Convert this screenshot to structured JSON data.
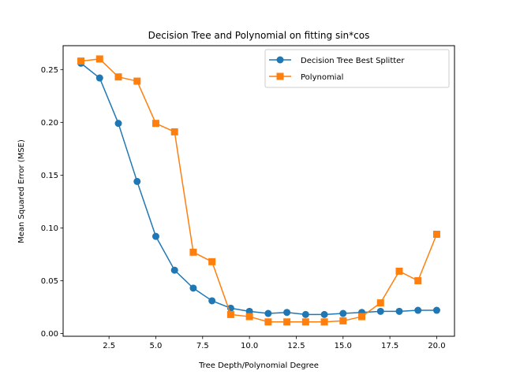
{
  "chart_data": {
    "type": "line",
    "title": "Decision Tree and Polynomial on fitting sin*cos",
    "xlabel": "Tree Depth/Polynomial Degree",
    "ylabel": "Mean Squared Error (MSE)",
    "xlim": [
      0.05,
      20.95
    ],
    "ylim": [
      -0.0026,
      0.2726
    ],
    "x_ticks": [
      2.5,
      5.0,
      7.5,
      10.0,
      12.5,
      15.0,
      17.5,
      20.0
    ],
    "x_tick_labels": [
      "2.5",
      "5.0",
      "7.5",
      "10.0",
      "12.5",
      "15.0",
      "17.5",
      "20.0"
    ],
    "y_ticks": [
      0.0,
      0.05,
      0.1,
      0.15,
      0.2,
      0.25
    ],
    "y_tick_labels": [
      "0.00",
      "0.05",
      "0.10",
      "0.15",
      "0.20",
      "0.25"
    ],
    "grid": false,
    "legend_position": "top-right",
    "x": [
      1,
      2,
      3,
      4,
      5,
      6,
      7,
      8,
      9,
      10,
      11,
      12,
      13,
      14,
      15,
      16,
      17,
      18,
      19,
      20
    ],
    "series": [
      {
        "name": "Decision Tree Best Splitter",
        "color": "#1f77b4",
        "marker": "circle",
        "values": [
          0.256,
          0.242,
          0.199,
          0.144,
          0.092,
          0.06,
          0.043,
          0.031,
          0.024,
          0.021,
          0.019,
          0.02,
          0.018,
          0.018,
          0.019,
          0.02,
          0.021,
          0.021,
          0.022,
          0.022
        ]
      },
      {
        "name": "Polynomial",
        "color": "#ff7f0e",
        "marker": "square",
        "values": [
          0.258,
          0.26,
          0.243,
          0.239,
          0.199,
          0.191,
          0.077,
          0.068,
          0.018,
          0.016,
          0.011,
          0.011,
          0.011,
          0.011,
          0.012,
          0.016,
          0.029,
          0.059,
          0.05,
          0.094
        ]
      }
    ]
  }
}
